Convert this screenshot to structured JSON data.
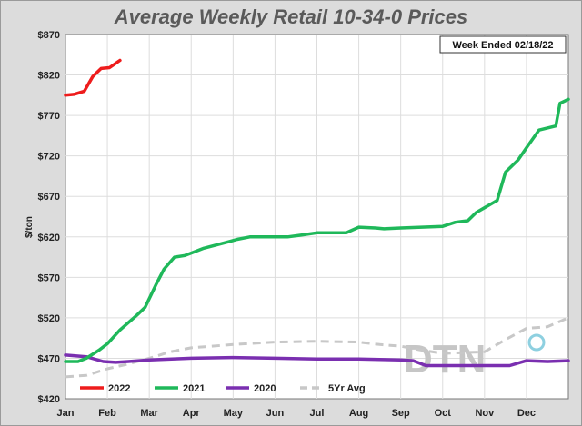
{
  "chart_data": {
    "type": "line",
    "title": "Average Weekly Retail 10-34-0 Prices",
    "ylabel": "$/ton",
    "xlabel": "",
    "annotation": "Week Ended 02/18/22",
    "logo": "DTN",
    "ylim": [
      420,
      870
    ],
    "yticks": [
      "$870",
      "$820",
      "$770",
      "$720",
      "$670",
      "$620",
      "$570",
      "$520",
      "$470",
      "$420"
    ],
    "ytick_values": [
      870,
      820,
      770,
      720,
      670,
      620,
      570,
      520,
      470,
      420
    ],
    "x_months": [
      "Jan",
      "Feb",
      "Mar",
      "Apr",
      "May",
      "Jun",
      "Jul",
      "Aug",
      "Sep",
      "Oct",
      "Nov",
      "Dec"
    ],
    "xlim": [
      0,
      12
    ],
    "grid": true,
    "legend_position": "bottom",
    "series": [
      {
        "name": "2022",
        "color": "#ee1c1c",
        "dash": false,
        "x": [
          0.0,
          0.2,
          0.45,
          0.65,
          0.85,
          1.05,
          1.3
        ],
        "y": [
          795,
          796,
          800,
          818,
          828,
          829,
          838
        ]
      },
      {
        "name": "2021",
        "color": "#1fb85a",
        "dash": false,
        "x": [
          0.0,
          0.3,
          0.5,
          0.8,
          1.0,
          1.3,
          1.7,
          1.9,
          2.15,
          2.35,
          2.6,
          2.85,
          3.0,
          3.3,
          3.6,
          3.9,
          4.1,
          4.4,
          4.6,
          4.9,
          5.3,
          5.6,
          6.0,
          6.3,
          6.7,
          7.0,
          7.4,
          7.6,
          8.0,
          8.5,
          9.0,
          9.3,
          9.6,
          9.8,
          10.0,
          10.2,
          10.3,
          10.5,
          10.8,
          11.0,
          11.3,
          11.7,
          11.8,
          12.0
        ],
        "y": [
          466,
          466,
          470,
          480,
          488,
          505,
          523,
          533,
          560,
          580,
          595,
          597,
          600,
          606,
          610,
          614,
          617,
          620,
          620,
          620,
          620,
          622,
          625,
          625,
          625,
          632,
          631,
          630,
          631,
          632,
          633,
          638,
          640,
          650,
          656,
          662,
          665,
          700,
          715,
          730,
          752,
          757,
          785,
          790
        ]
      },
      {
        "name": "2020",
        "color": "#7a2fb0",
        "dash": false,
        "x": [
          0.0,
          0.5,
          0.9,
          1.2,
          1.5,
          2.0,
          3.0,
          4.0,
          5.0,
          6.0,
          7.0,
          8.0,
          8.3,
          8.6,
          9.0,
          10.0,
          10.6,
          11.0,
          11.5,
          12.0
        ],
        "y": [
          474,
          472,
          466,
          465,
          466,
          468,
          470,
          471,
          470,
          469,
          469,
          468,
          467,
          461,
          461,
          461,
          461,
          467,
          466,
          467
        ]
      },
      {
        "name": "5Yr Avg",
        "color": "#c8c8c8",
        "dash": true,
        "x": [
          0.0,
          0.5,
          1.0,
          1.5,
          2.0,
          2.5,
          3.0,
          4.0,
          5.0,
          6.0,
          7.0,
          7.5,
          8.0,
          8.5,
          9.0,
          10.0,
          10.5,
          11.0,
          11.5,
          12.0
        ],
        "y": [
          447,
          449,
          457,
          463,
          470,
          478,
          483,
          487,
          490,
          491,
          490,
          487,
          485,
          480,
          476,
          478,
          493,
          507,
          509,
          520
        ]
      }
    ]
  }
}
